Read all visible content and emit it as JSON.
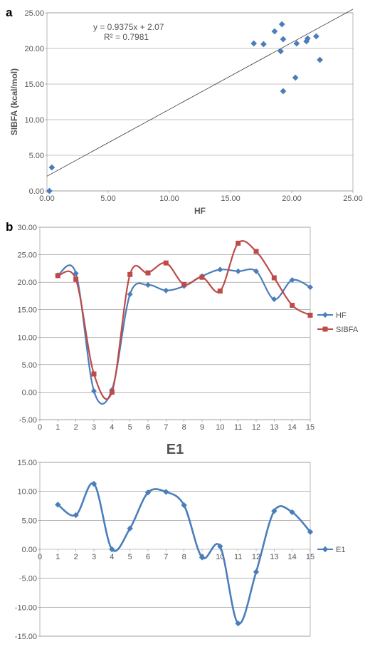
{
  "global": {
    "bg": "#ffffff",
    "grid_color": "#888888",
    "tick_font_color": "#555555"
  },
  "chartA": {
    "panel_label": "a",
    "type": "scatter",
    "xlim": [
      0,
      25
    ],
    "ylim": [
      0,
      25
    ],
    "xtick_step": 5,
    "ytick_step": 5,
    "x_label": "HF",
    "y_label": "SIBFA (kcal/mol)",
    "marker_color": "#4a7ebb",
    "marker_size": 7,
    "trend_line": {
      "slope": 0.9375,
      "intercept": 2.07,
      "r2": 0.7981
    },
    "equation_text": "y = 0.9375x + 2.07",
    "r2_text": "R² = 0.7981",
    "points": [
      [
        0.2,
        0.0
      ],
      [
        0.4,
        3.3
      ],
      [
        16.9,
        20.7
      ],
      [
        17.7,
        20.6
      ],
      [
        18.6,
        22.4
      ],
      [
        19.1,
        19.6
      ],
      [
        19.2,
        23.4
      ],
      [
        19.3,
        21.3
      ],
      [
        19.3,
        14.0
      ],
      [
        20.4,
        20.7
      ],
      [
        20.3,
        15.9
      ],
      [
        21.2,
        21.0
      ],
      [
        21.3,
        21.4
      ],
      [
        22.0,
        21.7
      ],
      [
        22.3,
        18.4
      ]
    ]
  },
  "chartB": {
    "panel_label": "b",
    "type": "line",
    "xlim": [
      0,
      15
    ],
    "ylim": [
      -5,
      30
    ],
    "xticks": [
      0,
      1,
      2,
      3,
      4,
      5,
      6,
      7,
      8,
      9,
      10,
      11,
      12,
      13,
      14,
      15
    ],
    "ytick_step": 5,
    "series": [
      {
        "name": "HF",
        "color": "#4a7ebb",
        "marker": "diamond",
        "line_width": 2.2,
        "x": [
          1,
          2,
          3,
          4,
          5,
          6,
          7,
          8,
          9,
          10,
          11,
          12,
          13,
          14,
          15
        ],
        "y": [
          21.3,
          21.6,
          0.2,
          0.4,
          17.8,
          19.5,
          18.5,
          19.3,
          21.1,
          22.3,
          22.0,
          22.0,
          16.9,
          20.4,
          19.1
        ]
      },
      {
        "name": "SIBFA",
        "color": "#be4b48",
        "marker": "square",
        "line_width": 2.2,
        "x": [
          1,
          2,
          3,
          4,
          5,
          6,
          7,
          8,
          9,
          10,
          11,
          12,
          13,
          14,
          15
        ],
        "y": [
          21.2,
          20.5,
          3.3,
          0.0,
          21.4,
          21.7,
          23.5,
          19.6,
          20.9,
          18.4,
          27.1,
          25.6,
          20.8,
          15.8,
          14.0
        ]
      }
    ]
  },
  "chartC": {
    "title": "E1",
    "type": "line",
    "xlim": [
      0,
      15
    ],
    "ylim": [
      -15,
      15
    ],
    "xticks": [
      0,
      1,
      2,
      3,
      4,
      5,
      6,
      7,
      8,
      9,
      10,
      11,
      12,
      13,
      14,
      15
    ],
    "ytick_step": 5,
    "series": [
      {
        "name": "E1",
        "color": "#4a7ebb",
        "marker": "diamond",
        "line_width": 2.6,
        "x": [
          1,
          2,
          3,
          4,
          5,
          6,
          7,
          8,
          9,
          10,
          11,
          12,
          13,
          14,
          15
        ],
        "y": [
          7.7,
          5.9,
          11.3,
          0.0,
          3.6,
          9.8,
          9.9,
          7.6,
          -1.4,
          0.5,
          -12.8,
          -3.9,
          6.6,
          6.4,
          3.0
        ]
      }
    ]
  }
}
